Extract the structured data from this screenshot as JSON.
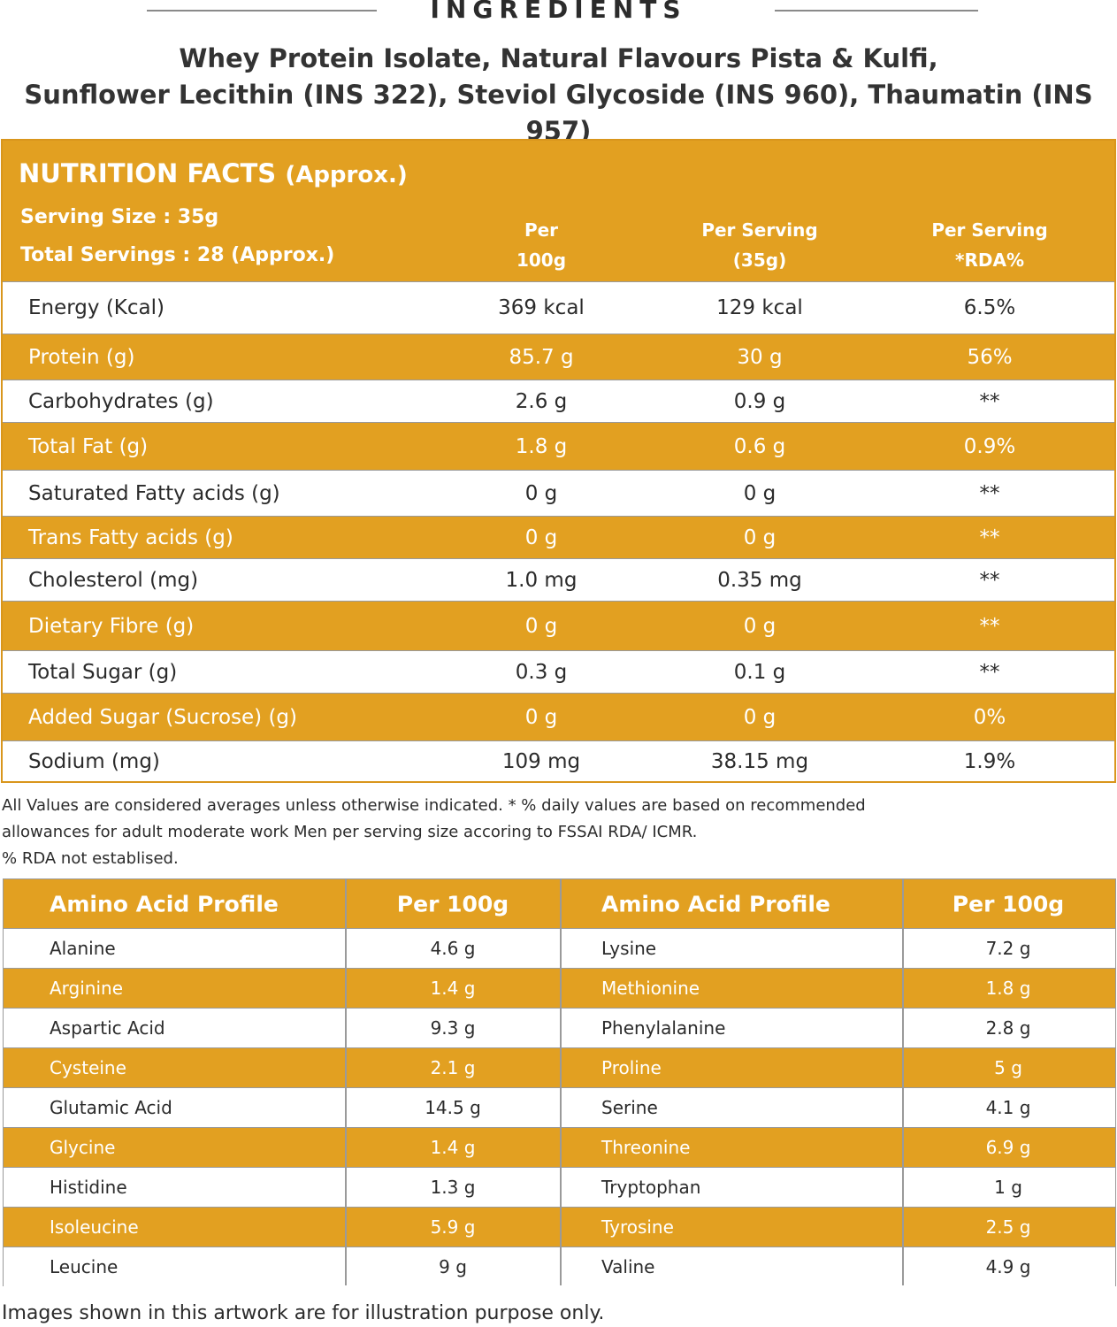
{
  "ingredients": {
    "title": "INGREDIENTS",
    "line1": "Whey Protein Isolate, Natural Flavours Pista & Kulfi,",
    "line2": "Sunflower Lecithin (INS 322), Steviol Glycoside (INS 960), Thaumatin (INS 957)"
  },
  "nutrition": {
    "title": "NUTRITION FACTS",
    "title_sub": "(Approx.)",
    "serving_size": "Serving Size : 35g",
    "total_servings": "Total Servings : 28 (Approx.)",
    "col1_a": "Per",
    "col1_b": "100g",
    "col2_a": "Per Serving",
    "col2_b": "(35g)",
    "col3_a": "Per Serving",
    "col3_b": "*RDA%",
    "rows": [
      {
        "name": "Energy (Kcal)",
        "per100": "369 kcal",
        "serving": "129 kcal",
        "rda": "6.5%"
      },
      {
        "name": "Protein (g)",
        "per100": "85.7 g",
        "serving": "30 g",
        "rda": "56%"
      },
      {
        "name": "Carbohydrates (g)",
        "per100": "2.6 g",
        "serving": "0.9 g",
        "rda": "**"
      },
      {
        "name": "Total Fat (g)",
        "per100": "1.8 g",
        "serving": "0.6 g",
        "rda": "0.9%"
      },
      {
        "name": "Saturated Fatty acids (g)",
        "per100": "0 g",
        "serving": "0 g",
        "rda": "**"
      },
      {
        "name": "Trans Fatty acids (g)",
        "per100": "0 g",
        "serving": "0 g",
        "rda": "**"
      },
      {
        "name": "Cholesterol (mg)",
        "per100": "1.0 mg",
        "serving": "0.35 mg",
        "rda": "**"
      },
      {
        "name": "Dietary Fibre (g)",
        "per100": "0 g",
        "serving": "0 g",
        "rda": "**"
      },
      {
        "name": "Total Sugar (g)",
        "per100": "0.3 g",
        "serving": "0.1 g",
        "rda": "**"
      },
      {
        "name": "Added Sugar (Sucrose) (g)",
        "per100": "0 g",
        "serving": "0 g",
        "rda": "0%"
      },
      {
        "name": "Sodium (mg)",
        "per100": "109 mg",
        "serving": "38.15 mg",
        "rda": "1.9%"
      }
    ]
  },
  "notes": {
    "line1": "All Values are considered averages unless otherwise indicated. * % daily values are based on recommended",
    "line2": "allowances for adult moderate work Men per serving size accoring to FSSAI RDA/ ICMR.",
    "line3": "% RDA not establised."
  },
  "amino": {
    "header_profile": "Amino Acid Profile",
    "header_per100": "Per 100g",
    "rows": [
      {
        "a": "Alanine",
        "av": "4.6 g",
        "b": "Lysine",
        "bv": "7.2 g"
      },
      {
        "a": "Arginine",
        "av": "1.4 g",
        "b": "Methionine",
        "bv": "1.8 g"
      },
      {
        "a": "Aspartic Acid",
        "av": "9.3 g",
        "b": "Phenylalanine",
        "bv": "2.8 g"
      },
      {
        "a": "Cysteine",
        "av": "2.1 g",
        "b": "Proline",
        "bv": "5 g"
      },
      {
        "a": "Glutamic Acid",
        "av": "14.5 g",
        "b": "Serine",
        "bv": "4.1 g"
      },
      {
        "a": "Glycine",
        "av": "1.4 g",
        "b": "Threonine",
        "bv": "6.9 g"
      },
      {
        "a": "Histidine",
        "av": "1.3 g",
        "b": "Tryptophan",
        "bv": "1 g"
      },
      {
        "a": "Isoleucine",
        "av": "5.9 g",
        "b": "Tyrosine",
        "bv": "2.5 g"
      },
      {
        "a": "Leucine",
        "av": "9 g",
        "b": "Valine",
        "bv": "4.9 g"
      }
    ]
  },
  "footer": "Images shown in this artwork are for illustration purpose only.",
  "colors": {
    "accent": "#e2a021",
    "text": "#2b2b2b"
  }
}
